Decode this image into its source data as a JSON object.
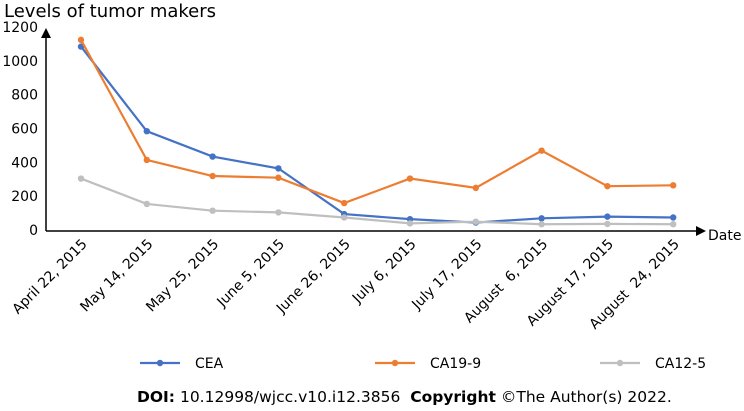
{
  "chart_data": {
    "type": "line",
    "title": "Levels of tumor makers",
    "x_label": "Date",
    "categories": [
      "April 22, 2015",
      "May 14, 2015",
      "May 25, 2015",
      "June 5, 2015",
      "June 26, 2015",
      "July 6, 2015",
      "July 17, 2015",
      "August  6, 2015",
      "August 17, 2015",
      "August  24, 2015"
    ],
    "series": [
      {
        "name": "CEA",
        "color": "#4472c4",
        "values": [
          1090,
          590,
          440,
          370,
          100,
          70,
          50,
          75,
          85,
          80
        ]
      },
      {
        "name": "CA19-9",
        "color": "#ed7d31",
        "values": [
          1130,
          420,
          325,
          315,
          165,
          310,
          255,
          475,
          265,
          270
        ]
      },
      {
        "name": "CA12-5",
        "color": "#bfbfbf",
        "values": [
          310,
          160,
          120,
          110,
          80,
          45,
          55,
          40,
          42,
          40
        ]
      }
    ],
    "ylim": [
      0,
      1200
    ],
    "yticks": [
      0,
      200,
      400,
      600,
      800,
      1000,
      1200
    ],
    "grid": false,
    "legend": "bottom"
  },
  "footer": {
    "doi_label": "DOI:",
    "doi": "10.12998/wjcc.v10.i12.3856",
    "copyright_label": "Copyright",
    "copyright": "©The Author(s) 2022."
  }
}
